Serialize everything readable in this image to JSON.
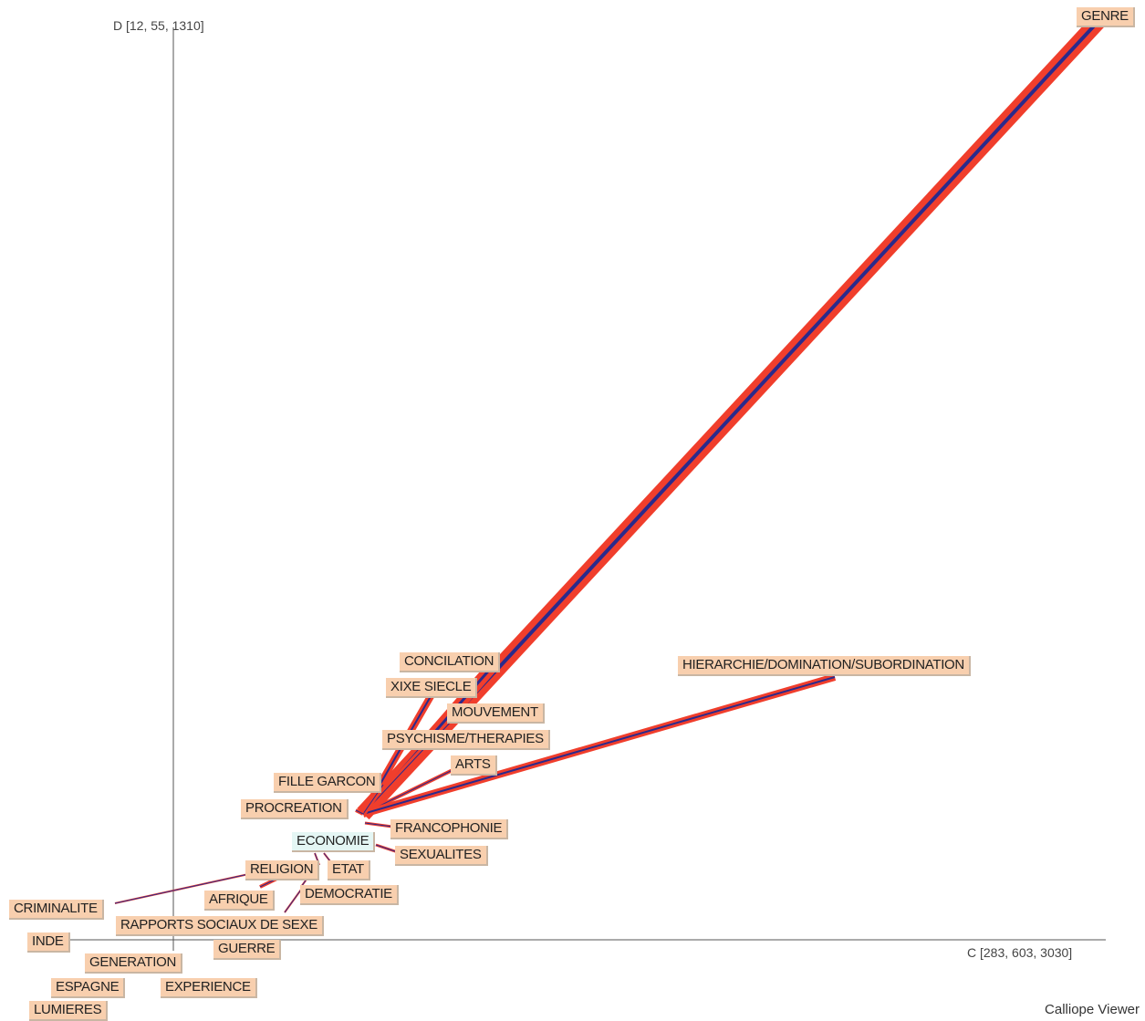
{
  "axes": {
    "y_label": "D [12, 55, 1310]",
    "x_label": "C [283, 603, 3030]"
  },
  "colors": {
    "node_fill": "#f8cfae",
    "center_fill": "#e4f6f4",
    "link_red": "#f03e2c",
    "link_blue": "#2a2a8c"
  },
  "center": {
    "label": "ECONOMIE"
  },
  "nodes": [
    {
      "id": "genre",
      "label": "GENRE"
    },
    {
      "id": "conciliation",
      "label": "CONCILATION"
    },
    {
      "id": "xixe",
      "label": "XIXE SIECLE"
    },
    {
      "id": "mouvement",
      "label": "MOUVEMENT"
    },
    {
      "id": "psychisme",
      "label": "PSYCHISME/THERAPIES"
    },
    {
      "id": "arts",
      "label": "ARTS"
    },
    {
      "id": "hierarchie",
      "label": "HIERARCHIE/DOMINATION/SUBORDINATION"
    },
    {
      "id": "fille",
      "label": "FILLE GARCON"
    },
    {
      "id": "procreation",
      "label": "PROCREATION"
    },
    {
      "id": "francophonie",
      "label": "FRANCOPHONIE"
    },
    {
      "id": "sexualites",
      "label": "SEXUALITES"
    },
    {
      "id": "religion",
      "label": "RELIGION"
    },
    {
      "id": "etat",
      "label": "ETAT"
    },
    {
      "id": "democratie",
      "label": "DEMOCRATIE"
    },
    {
      "id": "afrique",
      "label": "AFRIQUE"
    },
    {
      "id": "criminalite",
      "label": "CRIMINALITE"
    },
    {
      "id": "rapports",
      "label": "RAPPORTS SOCIAUX DE SEXE"
    },
    {
      "id": "inde",
      "label": "INDE"
    },
    {
      "id": "guerre",
      "label": "GUERRE"
    },
    {
      "id": "generation",
      "label": "GENERATION"
    },
    {
      "id": "espagne",
      "label": "ESPAGNE"
    },
    {
      "id": "experience",
      "label": "EXPERIENCE"
    },
    {
      "id": "lumieres",
      "label": "LUMIERES"
    }
  ],
  "footer": "Calliope Viewer"
}
